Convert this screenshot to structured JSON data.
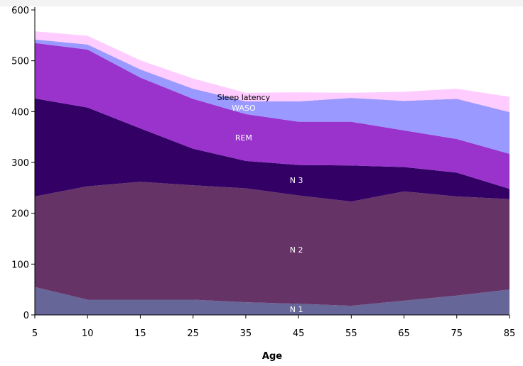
{
  "chart_data": {
    "type": "area",
    "stacked": true,
    "categories": [
      "5",
      "10",
      "15",
      "25",
      "35",
      "45",
      "55",
      "65",
      "75",
      "85"
    ],
    "xlabel": "Age",
    "ylabel": "",
    "ylim": [
      0,
      600
    ],
    "yticks": [
      "0",
      "100",
      "200",
      "300",
      "400",
      "500",
      "600"
    ],
    "grid": false,
    "series": [
      {
        "name": "N 1",
        "color": "#666699",
        "label_color": "#ffffff",
        "label_at": 5,
        "values": [
          55,
          30,
          30,
          30,
          25,
          22,
          18,
          28,
          38,
          50
        ]
      },
      {
        "name": "N 2",
        "color": "#663366",
        "label_color": "#ffffff",
        "label_at": 5,
        "values": [
          178,
          223,
          232,
          225,
          224,
          213,
          205,
          215,
          195,
          178
        ]
      },
      {
        "name": "N 3",
        "color": "#330066",
        "label_color": "#ffffff",
        "label_at": 5,
        "values": [
          193,
          155,
          105,
          72,
          54,
          60,
          71,
          48,
          47,
          20
        ]
      },
      {
        "name": "REM",
        "color": "#9933cc",
        "label_color": "#ffffff",
        "label_at": 4,
        "values": [
          109,
          114,
          100,
          98,
          92,
          85,
          86,
          72,
          66,
          69
        ]
      },
      {
        "name": "WASO",
        "color": "#9999ff",
        "label_color": "#ffffff",
        "label_at": 4,
        "values": [
          7,
          10,
          16,
          20,
          25,
          40,
          47,
          58,
          79,
          82
        ]
      },
      {
        "name": "Sleep latency",
        "color": "#ffccff",
        "label_color": "#000000",
        "label_at": 4,
        "values": [
          16,
          17,
          18,
          20,
          17,
          18,
          10,
          18,
          20,
          30
        ]
      }
    ]
  }
}
